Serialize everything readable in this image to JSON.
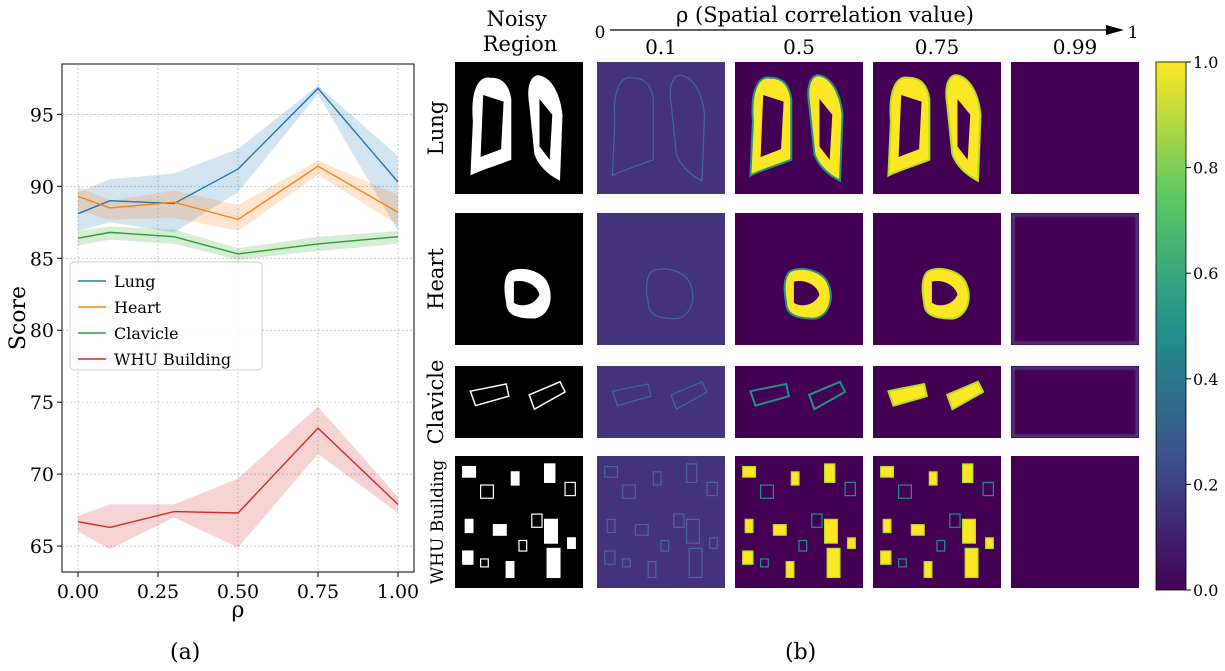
{
  "chart_data": [
    {
      "type": "line",
      "xlabel": "ρ",
      "ylabel": "Score",
      "xlim": [
        -0.05,
        1.05
      ],
      "ylim": [
        63.2,
        98.5
      ],
      "xticks": [
        "0.00",
        "0.25",
        "0.50",
        "0.75",
        "1.00"
      ],
      "yticks": [
        "65",
        "70",
        "75",
        "80",
        "85",
        "90",
        "95"
      ],
      "grid": true,
      "legend": "center-left",
      "x": [
        0.0,
        0.1,
        0.3,
        0.5,
        0.75,
        1.0
      ],
      "series": [
        {
          "name": "Lung",
          "color": "#1f77b4",
          "values": [
            88.1,
            89.0,
            88.8,
            91.2,
            96.8,
            90.3
          ],
          "lower": [
            86.9,
            87.5,
            86.8,
            89.6,
            96.4,
            86.9
          ],
          "upper": [
            89.6,
            90.5,
            90.9,
            92.6,
            97.0,
            92.1
          ]
        },
        {
          "name": "Heart",
          "color": "#ff7f0e",
          "values": [
            89.3,
            88.5,
            88.9,
            87.7,
            91.4,
            88.2
          ],
          "lower": [
            88.3,
            87.7,
            87.8,
            86.9,
            90.8,
            87.3
          ],
          "upper": [
            90.0,
            89.0,
            89.7,
            88.7,
            91.8,
            89.4
          ]
        },
        {
          "name": "Clavicle",
          "color": "#2ca02c",
          "values": [
            86.4,
            86.8,
            86.5,
            85.3,
            86.0,
            86.5
          ],
          "lower": [
            85.9,
            86.3,
            86.0,
            84.9,
            85.5,
            86.0
          ],
          "upper": [
            86.9,
            87.2,
            87.0,
            85.7,
            86.5,
            86.9
          ]
        },
        {
          "name": "WHU Building",
          "color": "#d62728",
          "values": [
            66.7,
            66.3,
            67.4,
            67.3,
            73.2,
            67.9
          ],
          "lower": [
            66.0,
            64.8,
            67.0,
            64.9,
            71.4,
            67.3
          ],
          "upper": [
            67.1,
            67.9,
            67.9,
            69.7,
            74.7,
            68.4
          ]
        }
      ]
    },
    {
      "type": "heatmap",
      "col_header": "Noisy Region",
      "axis_title": "ρ (Spatial correlation value)",
      "axis_start": "0",
      "axis_end": "1",
      "columns": [
        "0.1",
        "0.5",
        "0.75",
        "0.99"
      ],
      "rows": [
        "Lung",
        "Heart",
        "Clavicle",
        "WHU Building"
      ],
      "colorbar_ticks": [
        "0.0",
        "0.2",
        "0.4",
        "0.6",
        "0.8",
        "1.0"
      ],
      "colorbar_range": [
        0,
        1
      ],
      "colormap": [
        "#440154",
        "#3b528b",
        "#21918c",
        "#5ec962",
        "#fde725"
      ]
    }
  ],
  "sublabels": {
    "a": "(a)",
    "b": "(b)"
  }
}
